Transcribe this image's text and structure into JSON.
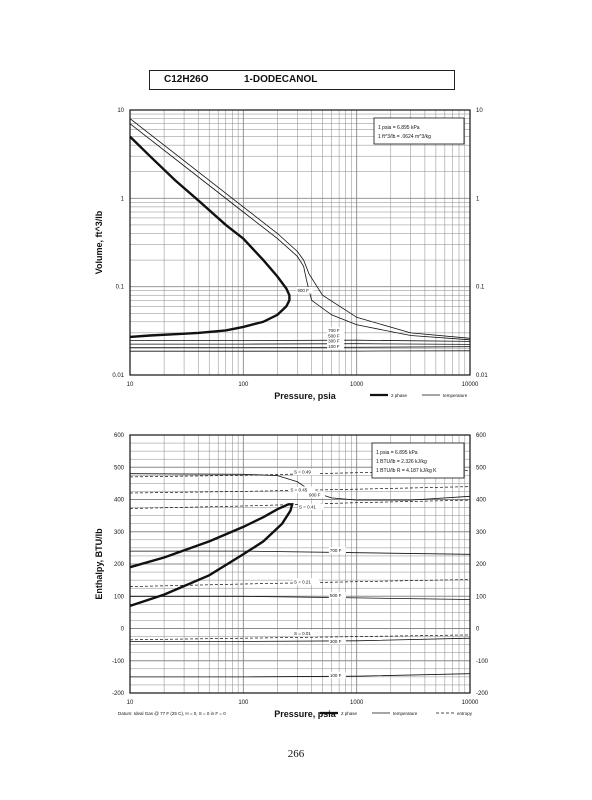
{
  "header": {
    "formula": "C12H26O",
    "name": "1-DODECANOL"
  },
  "page_number": "266",
  "chart_data": [
    {
      "type": "line",
      "id": "volume",
      "title": "",
      "xlabel": "Pressure, psia",
      "ylabel": "Volume, ft^3/lb",
      "xscale": "log",
      "yscale": "log",
      "xlim": [
        10,
        10000
      ],
      "ylim": [
        0.01,
        10
      ],
      "xticks": [
        "10",
        "100",
        "1000",
        "10000"
      ],
      "yticks_left": [
        "10",
        "1",
        "0.1",
        "0.01"
      ],
      "yticks_right": [
        "10",
        "1",
        "0.1",
        "0.01"
      ],
      "grid": true,
      "conversion_notes": [
        "1 psia = 6.895 kPa",
        "1 ft^3/lb = .0624 m^3/kg"
      ],
      "legend": [
        {
          "label": "2 phase",
          "style": "thick"
        },
        {
          "label": "temperature",
          "style": "thin"
        }
      ],
      "series": [
        {
          "kind": "2phase",
          "name": "2 phase",
          "x": [
            10,
            15,
            25,
            40,
            70,
            100,
            150,
            200,
            240,
            255,
            255,
            240,
            200,
            150,
            100,
            70,
            40,
            25,
            15,
            10
          ],
          "y": [
            5.0,
            3.0,
            1.6,
            0.95,
            0.5,
            0.35,
            0.2,
            0.13,
            0.095,
            0.08,
            0.07,
            0.06,
            0.048,
            0.04,
            0.035,
            0.032,
            0.03,
            0.029,
            0.028,
            0.027
          ]
        },
        {
          "kind": "isotherm",
          "label": "100 F",
          "x": [
            10,
            100,
            1000,
            10000
          ],
          "y": [
            0.0186,
            0.0186,
            0.01865,
            0.0188
          ]
        },
        {
          "kind": "isotherm",
          "label": "300 F",
          "x": [
            10,
            100,
            1000,
            10000
          ],
          "y": [
            0.0205,
            0.0205,
            0.0206,
            0.0209
          ]
        },
        {
          "kind": "isotherm",
          "label": "500 F",
          "x": [
            10,
            100,
            1000,
            10000
          ],
          "y": [
            0.0224,
            0.0224,
            0.0226,
            0.0222
          ]
        },
        {
          "kind": "isotherm",
          "label": "700 F",
          "x": [
            10,
            100,
            1000,
            10000
          ],
          "y": [
            0.0246,
            0.0246,
            0.0248,
            0.024
          ]
        },
        {
          "kind": "isotherm",
          "label": "900 F",
          "x": [
            10,
            100,
            200,
            300,
            340,
            360,
            400,
            600,
            1000,
            3000,
            10000
          ],
          "y": [
            7.0,
            0.7,
            0.35,
            0.22,
            0.17,
            0.12,
            0.07,
            0.048,
            0.037,
            0.028,
            0.025
          ]
        },
        {
          "kind": "isotherm",
          "label": "",
          "x": [
            10,
            100,
            200,
            300,
            340,
            380,
            500,
            1000,
            3000,
            10000
          ],
          "y": [
            8.0,
            0.8,
            0.4,
            0.25,
            0.2,
            0.14,
            0.08,
            0.045,
            0.03,
            0.026
          ]
        }
      ],
      "curve_labels": [
        {
          "text": "900 F",
          "x": 300,
          "y": 0.087
        },
        {
          "text": "700 F",
          "x": 560,
          "y": 0.0305
        },
        {
          "text": "500 F",
          "x": 560,
          "y": 0.0265
        },
        {
          "text": "300 F",
          "x": 560,
          "y": 0.0232
        },
        {
          "text": "100 F",
          "x": 560,
          "y": 0.0202
        }
      ]
    },
    {
      "type": "line",
      "id": "enthalpy",
      "title": "",
      "xlabel": "Pressure, psia",
      "ylabel": "Enthalpy, BTU/lb",
      "xscale": "log",
      "yscale": "linear",
      "xlim": [
        10,
        10000
      ],
      "ylim": [
        -200,
        600
      ],
      "xticks": [
        "10",
        "100",
        "1000",
        "10000"
      ],
      "yticks_left": [
        "600",
        "500",
        "400",
        "300",
        "200",
        "100",
        "0",
        "-100",
        "-200"
      ],
      "yticks_right": [
        "600",
        "500",
        "400",
        "300",
        "200",
        "100",
        "0",
        "-100",
        "-200"
      ],
      "grid": true,
      "conversion_notes": [
        "1 psia = 6.895 kPa",
        "1 BTU/lb = 2.326 kJ/kg",
        "1 BTU/lb R = 4.187 kJ/kg K"
      ],
      "legend": [
        {
          "label": "2 phase",
          "style": "thick"
        },
        {
          "label": "temperature",
          "style": "thin"
        },
        {
          "label": "entropy",
          "style": "dashed"
        }
      ],
      "footnote": "Datum: Ideal Gas @ 77 F (25 C), H = 0, S = 0 in F = 0",
      "series": [
        {
          "kind": "2phase",
          "name": "2 phase",
          "x": [
            10,
            20,
            50,
            100,
            150,
            200,
            250,
            270,
            260,
            220,
            150,
            100,
            50,
            20,
            10
          ],
          "y": [
            190,
            220,
            270,
            315,
            345,
            370,
            385,
            385,
            365,
            325,
            270,
            230,
            165,
            105,
            70
          ]
        },
        {
          "kind": "isotherm",
          "label": "100 F",
          "x": [
            10,
            100,
            1000,
            10000
          ],
          "y": [
            -150,
            -150,
            -148,
            -140
          ]
        },
        {
          "kind": "isotherm",
          "label": "300 F",
          "x": [
            10,
            100,
            1000,
            10000
          ],
          "y": [
            -40,
            -40,
            -38,
            -30
          ]
        },
        {
          "kind": "isotherm",
          "label": "500 F",
          "x": [
            10,
            100,
            1000,
            10000
          ],
          "y": [
            100,
            100,
            95,
            90
          ]
        },
        {
          "kind": "isotherm",
          "label": "700 F",
          "x": [
            10,
            100,
            1000,
            10000
          ],
          "y": [
            240,
            240,
            235,
            230
          ]
        },
        {
          "kind": "isotherm",
          "label": "900 F",
          "x": [
            10,
            100,
            200,
            300,
            400,
            600,
            1000,
            3000,
            10000
          ],
          "y": [
            480,
            478,
            474,
            455,
            425,
            405,
            398,
            398,
            410
          ]
        },
        {
          "kind": "entropy",
          "label": "S = 0.49",
          "x": [
            10,
            100,
            1000,
            10000
          ],
          "y": [
            470,
            475,
            483,
            490
          ]
        },
        {
          "kind": "entropy",
          "label": "S = 0.45",
          "x": [
            10,
            100,
            1000,
            10000
          ],
          "y": [
            420,
            425,
            432,
            440
          ]
        },
        {
          "kind": "entropy",
          "label": "S = 0.41",
          "x": [
            10,
            100,
            1000,
            10000
          ],
          "y": [
            372,
            380,
            390,
            398
          ]
        },
        {
          "kind": "entropy",
          "label": "S = 0.21",
          "x": [
            10,
            100,
            1000,
            10000
          ],
          "y": [
            130,
            138,
            145,
            152
          ]
        },
        {
          "kind": "entropy",
          "label": "S = 0.01",
          "x": [
            10,
            100,
            1000,
            10000
          ],
          "y": [
            -35,
            -30,
            -25,
            -20
          ]
        }
      ],
      "curve_labels": [
        {
          "text": "S = 0.49",
          "x": 280,
          "y": 480
        },
        {
          "text": "S = 0.45",
          "x": 260,
          "y": 425
        },
        {
          "text": "900 F",
          "x": 380,
          "y": 410
        },
        {
          "text": "S = 0.41",
          "x": 310,
          "y": 372
        },
        {
          "text": "700 F",
          "x": 580,
          "y": 237
        },
        {
          "text": "S = 0.21",
          "x": 280,
          "y": 140
        },
        {
          "text": "500 F",
          "x": 580,
          "y": 97
        },
        {
          "text": "S = 0.01",
          "x": 280,
          "y": -20
        },
        {
          "text": "300 F",
          "x": 580,
          "y": -45
        },
        {
          "text": "100 F",
          "x": 580,
          "y": -150
        }
      ]
    }
  ]
}
